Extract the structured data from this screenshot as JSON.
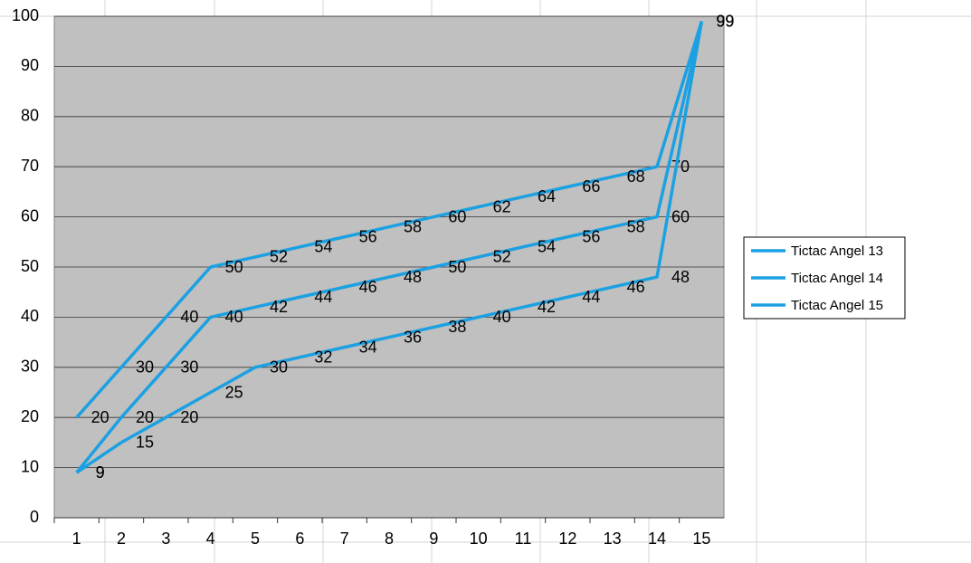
{
  "chart_data": {
    "type": "line",
    "categories": [
      1,
      2,
      3,
      4,
      5,
      6,
      7,
      8,
      9,
      10,
      11,
      12,
      13,
      14,
      15
    ],
    "series": [
      {
        "name": "Tictac Angel 13",
        "color": "#1ba1e2",
        "values": [
          20,
          30,
          40,
          50,
          52,
          54,
          56,
          58,
          60,
          62,
          64,
          66,
          68,
          70,
          99
        ]
      },
      {
        "name": "Tictac Angel 14",
        "color": "#1ba1e2",
        "values": [
          9,
          20,
          30,
          40,
          42,
          44,
          46,
          48,
          50,
          52,
          54,
          56,
          58,
          60,
          99
        ]
      },
      {
        "name": "Tictac Angel 15",
        "color": "#1ba1e2",
        "values": [
          9,
          15,
          20,
          25,
          30,
          32,
          34,
          36,
          38,
          40,
          42,
          44,
          46,
          48,
          99
        ]
      }
    ],
    "ylim": [
      0,
      100
    ],
    "yticks": [
      0,
      10,
      20,
      30,
      40,
      50,
      60,
      70,
      80,
      90,
      100
    ],
    "grid": true,
    "legend": "right",
    "plot_background": "#c0c0c0"
  }
}
